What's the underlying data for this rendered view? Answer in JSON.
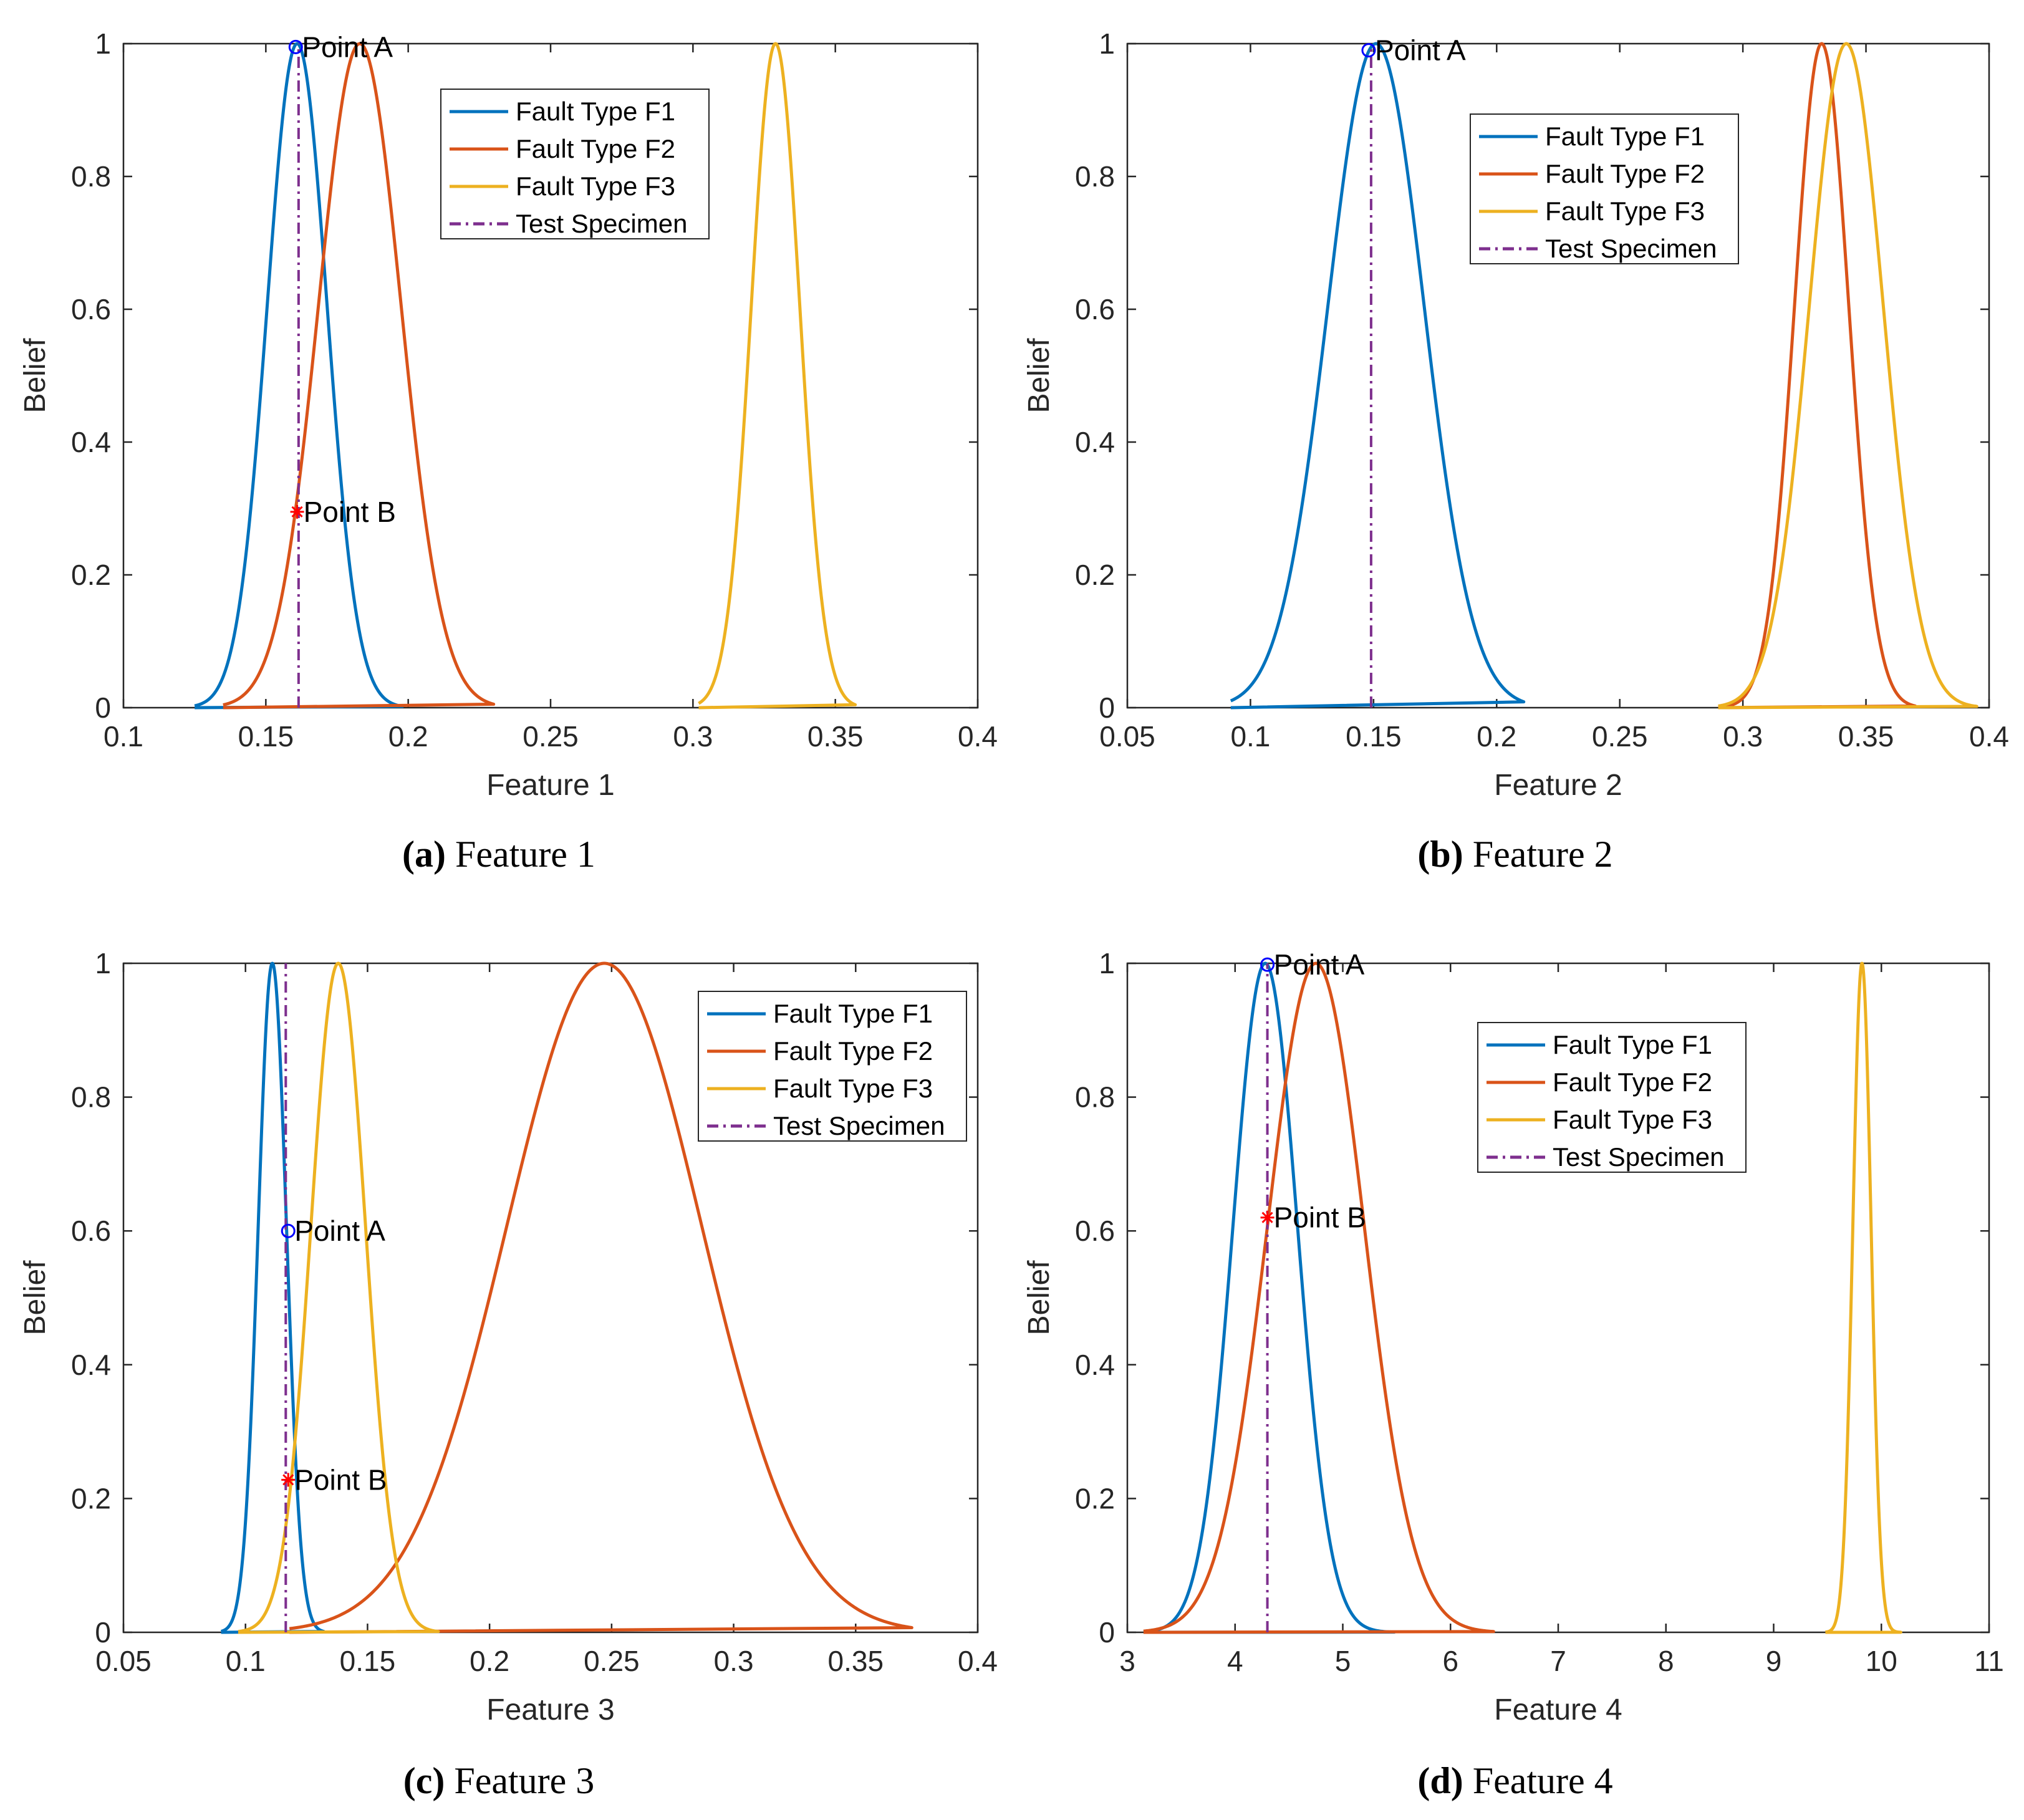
{
  "colors": {
    "f1": "#0072BD",
    "f2": "#D95319",
    "f3": "#EDB120",
    "test": "#7E2F8E",
    "pointA": "#0000FF",
    "pointB": "#FF0000",
    "axis": "#262626"
  },
  "legend_labels": [
    "Fault Type F1",
    "Fault Type F2",
    "Fault Type F3",
    "Test Specimen"
  ],
  "chart_data": [
    {
      "type": "line",
      "caption_letter": "(a)",
      "caption_text": "Feature 1",
      "xlabel": "Feature 1",
      "ylabel": "Belief",
      "xlim": [
        0.1,
        0.4
      ],
      "ylim": [
        0,
        1
      ],
      "xticks": [
        "0.1",
        "0.15",
        "0.2",
        "0.25",
        "0.3",
        "0.35",
        "0.4"
      ],
      "yticks": [
        "0",
        "0.2",
        "0.4",
        "0.6",
        "0.8",
        "1"
      ],
      "series": [
        {
          "name": "Fault Type F1",
          "type": "gaussian",
          "mean": 0.161,
          "sigma": 0.0105,
          "range": [
            0.125,
            0.198
          ]
        },
        {
          "name": "Fault Type F2",
          "type": "gaussian",
          "mean": 0.183,
          "sigma": 0.0145,
          "range": [
            0.135,
            0.23
          ]
        },
        {
          "name": "Fault Type F3",
          "type": "gaussian",
          "mean": 0.329,
          "sigma": 0.0085,
          "range": [
            0.302,
            0.357
          ]
        }
      ],
      "test_specimen_x": 0.1615,
      "points": [
        {
          "label": "Point A",
          "x": 0.1605,
          "y": 0.995,
          "marker": "circle"
        },
        {
          "label": "Point B",
          "x": 0.161,
          "y": 0.295,
          "marker": "star"
        }
      ]
    },
    {
      "type": "line",
      "caption_letter": "(b)",
      "caption_text": "Feature 2",
      "xlabel": "Feature 2",
      "ylabel": "Belief",
      "xlim": [
        0.05,
        0.4
      ],
      "ylim": [
        0,
        1
      ],
      "xticks": [
        "0.05",
        "0.1",
        "0.15",
        "0.2",
        "0.25",
        "0.3",
        "0.35",
        "0.4"
      ],
      "yticks": [
        "0",
        "0.2",
        "0.4",
        "0.6",
        "0.8",
        "1"
      ],
      "series": [
        {
          "name": "Fault Type F1",
          "type": "gaussian",
          "mean": 0.151,
          "sigma": 0.0195,
          "range": [
            0.092,
            0.211
          ]
        },
        {
          "name": "Fault Type F2",
          "type": "gaussian",
          "mean": 0.332,
          "sigma": 0.011,
          "range": [
            0.29,
            0.37
          ]
        },
        {
          "name": "Fault Type F3",
          "type": "gaussian",
          "mean": 0.342,
          "sigma": 0.015,
          "range": [
            0.29,
            0.395
          ]
        }
      ],
      "test_specimen_x": 0.149,
      "points": [
        {
          "label": "Point A",
          "x": 0.148,
          "y": 0.99,
          "marker": "circle"
        }
      ]
    },
    {
      "type": "line",
      "caption_letter": "(c)",
      "caption_text": "Feature 3",
      "xlabel": "Feature 3",
      "ylabel": "Belief",
      "xlim": [
        0.05,
        0.4
      ],
      "ylim": [
        0,
        1
      ],
      "xticks": [
        "0.05",
        "0.1",
        "0.15",
        "0.2",
        "0.25",
        "0.3",
        "0.35",
        "0.4"
      ],
      "yticks": [
        "0",
        "0.2",
        "0.4",
        "0.6",
        "0.8",
        "1"
      ],
      "series": [
        {
          "name": "Fault Type F1",
          "type": "gaussian",
          "mean": 0.111,
          "sigma": 0.0058,
          "range": [
            0.09,
            0.132
          ]
        },
        {
          "name": "Fault Type F2",
          "type": "gaussian",
          "mean": 0.247,
          "sigma": 0.04,
          "range": [
            0.118,
            0.373
          ]
        },
        {
          "name": "Fault Type F3",
          "type": "gaussian",
          "mean": 0.138,
          "sigma": 0.0112,
          "range": [
            0.097,
            0.179
          ]
        }
      ],
      "test_specimen_x": 0.1165,
      "points": [
        {
          "label": "Point A",
          "x": 0.1175,
          "y": 0.6,
          "marker": "circle"
        },
        {
          "label": "Point B",
          "x": 0.1175,
          "y": 0.228,
          "marker": "star"
        }
      ]
    },
    {
      "type": "line",
      "caption_letter": "(d)",
      "caption_text": "Feature 4",
      "xlabel": "Feature 4",
      "ylabel": "Belief",
      "xlim": [
        3,
        11
      ],
      "ylim": [
        0,
        1
      ],
      "xticks": [
        "3",
        "4",
        "5",
        "6",
        "7",
        "8",
        "9",
        "10",
        "11"
      ],
      "yticks": [
        "0",
        "0.2",
        "0.4",
        "0.6",
        "0.8",
        "1"
      ],
      "series": [
        {
          "name": "Fault Type F1",
          "type": "gaussian",
          "mean": 4.28,
          "sigma": 0.3,
          "range": [
            3.15,
            5.48
          ]
        },
        {
          "name": "Fault Type F2",
          "type": "gaussian",
          "mean": 4.75,
          "sigma": 0.45,
          "range": [
            3.15,
            6.4
          ]
        },
        {
          "name": "Fault Type F3",
          "type": "gaussian",
          "mean": 9.82,
          "sigma": 0.085,
          "range": [
            9.48,
            10.18
          ]
        }
      ],
      "test_specimen_x": 4.3,
      "points": [
        {
          "label": "Point A",
          "x": 4.3,
          "y": 0.998,
          "marker": "circle"
        },
        {
          "label": "Point B",
          "x": 4.3,
          "y": 0.62,
          "marker": "star"
        }
      ]
    }
  ]
}
